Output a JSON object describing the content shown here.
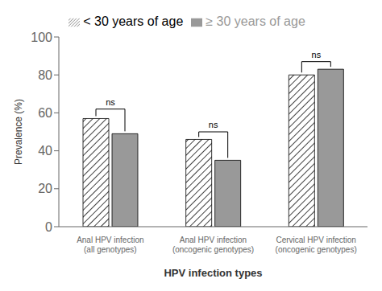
{
  "chart_data": {
    "type": "bar",
    "categories": [
      "Anal HPV infection\n(all genotypes)",
      "Anal HPV infection\n(oncogenic genotypes)",
      "Cervical HPV infection\n(oncogenic genotypes)"
    ],
    "series": [
      {
        "name": "< 30 years of age",
        "color": "#ffffff",
        "values": [
          57,
          46,
          80
        ]
      },
      {
        "name": "≥ 30 years of age",
        "color": "#999999",
        "values": [
          49,
          35,
          83
        ]
      }
    ],
    "xlabel": "HPV infection types",
    "ylabel": "Prevalence (%)",
    "ylim": [
      0,
      100
    ],
    "yticks": [
      0,
      20,
      40,
      60,
      80,
      100
    ],
    "legend": "top",
    "annotations": [
      {
        "text": "ns",
        "y": 64,
        "bracket": 62
      },
      {
        "text": "ns",
        "y": 52,
        "bracket": 50
      },
      {
        "text": "ns",
        "y": 89,
        "bracket": 87
      }
    ]
  }
}
